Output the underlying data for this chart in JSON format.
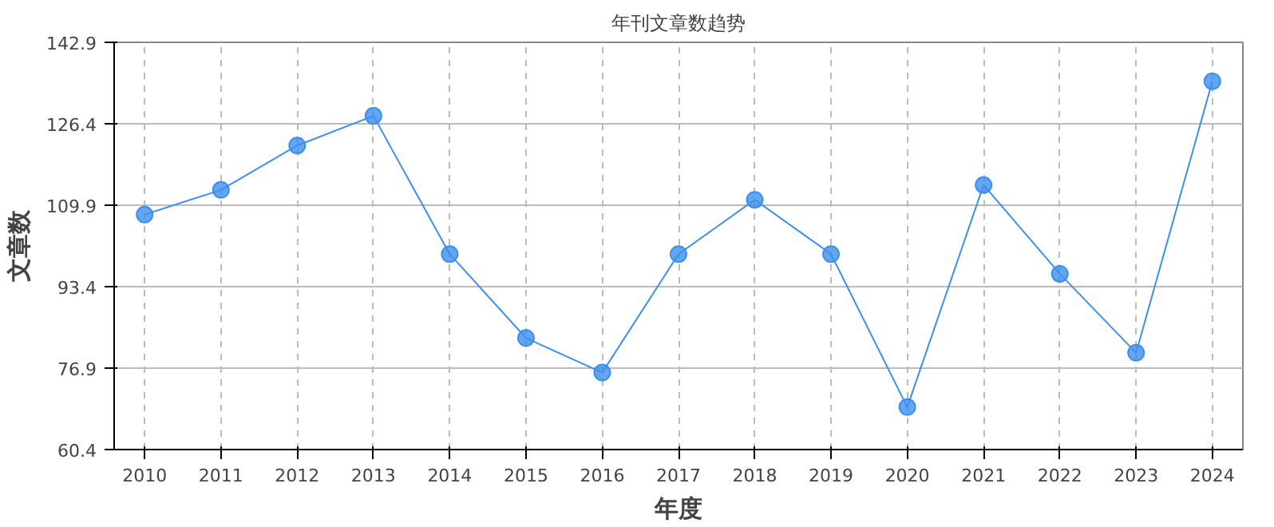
{
  "chart_data": {
    "type": "line",
    "title": "年刊文章数趋势",
    "xlabel": "年度",
    "ylabel": "文章数",
    "categories": [
      "2010",
      "2011",
      "2012",
      "2013",
      "2014",
      "2015",
      "2016",
      "2017",
      "2018",
      "2019",
      "2020",
      "2021",
      "2022",
      "2023",
      "2024"
    ],
    "series": [
      {
        "color": "#3d8fef",
        "values": [
          108,
          113,
          122,
          128,
          100,
          83,
          76,
          100,
          111,
          100,
          69,
          114,
          96,
          80,
          135
        ]
      }
    ],
    "ylim": [
      60.4,
      142.9
    ],
    "yticks": [
      60.4,
      76.9,
      93.4,
      109.9,
      126.4,
      142.9
    ],
    "grid": true,
    "marker": "circle",
    "line_style": "solid"
  }
}
